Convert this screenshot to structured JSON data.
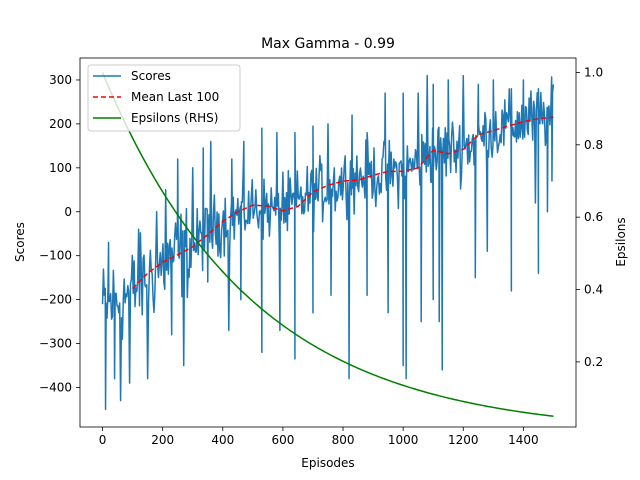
{
  "chart_data": {
    "type": "line",
    "title": "Max Gamma - 0.99",
    "xlabel": "Episodes",
    "ylabel": "Scores",
    "ylabel_right": "Epsilons",
    "xlim": [
      -75,
      1575
    ],
    "ylim": [
      -490,
      350
    ],
    "ylim_right": [
      0.02,
      1.04
    ],
    "xticks": [
      0,
      200,
      400,
      600,
      800,
      1000,
      1200,
      1400
    ],
    "yticks": [
      -400,
      -300,
      -200,
      -100,
      0,
      100,
      200,
      300
    ],
    "yticks_right": [
      0.2,
      0.4,
      0.6,
      0.8,
      1.0
    ],
    "ytick_labels_right": [
      "0.2",
      "0.4",
      "0.6",
      "0.8",
      "1.0"
    ],
    "grid": false,
    "legend_position": "top-left",
    "series": [
      {
        "name": "Scores",
        "axis": "left",
        "style": "solid",
        "color": "#1f77b4",
        "mean_curve": [
          [
            0,
            -220
          ],
          [
            100,
            -180
          ],
          [
            200,
            -120
          ],
          [
            300,
            -80
          ],
          [
            400,
            -20
          ],
          [
            500,
            10
          ],
          [
            600,
            0
          ],
          [
            700,
            40
          ],
          [
            800,
            70
          ],
          [
            900,
            85
          ],
          [
            1000,
            90
          ],
          [
            1100,
            135
          ],
          [
            1200,
            145
          ],
          [
            1300,
            185
          ],
          [
            1400,
            205
          ],
          [
            1500,
            220
          ]
        ],
        "extremes": [
          [
            10,
            -450
          ],
          [
            40,
            -380
          ],
          [
            60,
            -430
          ],
          [
            90,
            -390
          ],
          [
            150,
            -380
          ],
          [
            230,
            -280
          ],
          [
            270,
            -350
          ],
          [
            300,
            -420
          ],
          [
            350,
            -160
          ],
          [
            420,
            -270
          ],
          [
            460,
            -200
          ],
          [
            530,
            -320
          ],
          [
            590,
            -270
          ],
          [
            640,
            -335
          ],
          [
            700,
            -230
          ],
          [
            760,
            -190
          ],
          [
            820,
            -380
          ],
          [
            880,
            -190
          ],
          [
            950,
            -230
          ],
          [
            1000,
            -350
          ],
          [
            1010,
            -380
          ],
          [
            1060,
            -250
          ],
          [
            1100,
            -200
          ],
          [
            1120,
            -250
          ],
          [
            1130,
            -360
          ],
          [
            1200,
            -120
          ],
          [
            1240,
            -150
          ],
          [
            1280,
            -90
          ],
          [
            1360,
            -180
          ],
          [
            1440,
            20
          ],
          [
            1450,
            -140
          ],
          [
            1480,
            0
          ],
          [
            1495,
            70
          ],
          [
            20,
            -70
          ],
          [
            120,
            -40
          ],
          [
            180,
            0
          ],
          [
            210,
            50
          ],
          [
            250,
            120
          ],
          [
            300,
            100
          ],
          [
            335,
            145
          ],
          [
            360,
            160
          ],
          [
            430,
            120
          ],
          [
            470,
            160
          ],
          [
            530,
            190
          ],
          [
            580,
            180
          ],
          [
            600,
            90
          ],
          [
            640,
            180
          ],
          [
            700,
            195
          ],
          [
            750,
            200
          ],
          [
            830,
            220
          ],
          [
            880,
            180
          ],
          [
            940,
            270
          ],
          [
            1000,
            270
          ],
          [
            1050,
            270
          ],
          [
            1080,
            310
          ],
          [
            1100,
            290
          ],
          [
            1150,
            300
          ],
          [
            1200,
            310
          ],
          [
            1250,
            290
          ],
          [
            1300,
            300
          ],
          [
            1360,
            280
          ],
          [
            1400,
            300
          ],
          [
            1450,
            280
          ],
          [
            1500,
            290
          ]
        ]
      },
      {
        "name": "Mean Last 100",
        "axis": "left",
        "style": "dashed",
        "color": "#ff0000",
        "x": [
          100,
          150,
          200,
          250,
          300,
          350,
          400,
          450,
          500,
          550,
          600,
          650,
          700,
          750,
          800,
          850,
          900,
          950,
          1000,
          1050,
          1100,
          1150,
          1200,
          1250,
          1300,
          1350,
          1400,
          1450,
          1500
        ],
        "y": [
          -175,
          -140,
          -115,
          -98,
          -80,
          -52,
          -22,
          0,
          15,
          13,
          2,
          12,
          45,
          60,
          70,
          72,
          83,
          92,
          92,
          100,
          140,
          132,
          142,
          175,
          185,
          195,
          205,
          212,
          215
        ]
      },
      {
        "name": "Epsilons (RHS)",
        "axis": "right",
        "style": "solid",
        "color": "#008000",
        "formula": "y = 0.998 ^ x",
        "x": [
          0,
          100,
          200,
          300,
          400,
          500,
          600,
          700,
          800,
          900,
          1000,
          1100,
          1200,
          1300,
          1400,
          1500
        ],
        "y": [
          1.0,
          0.818,
          0.67,
          0.548,
          0.449,
          0.367,
          0.301,
          0.246,
          0.202,
          0.165,
          0.135,
          0.111,
          0.091,
          0.074,
          0.061,
          0.05
        ]
      }
    ]
  }
}
